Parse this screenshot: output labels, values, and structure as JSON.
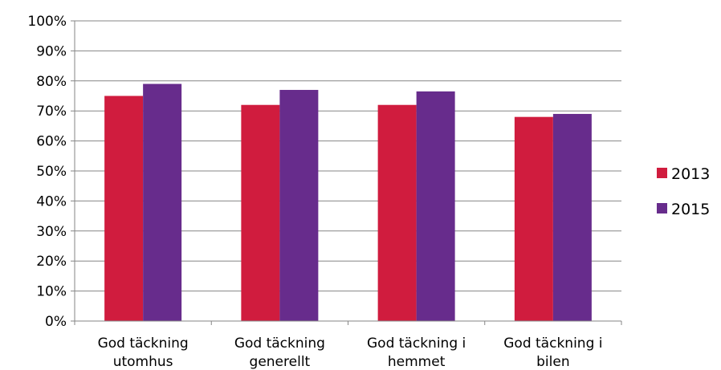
{
  "chart_data": {
    "type": "bar",
    "categories": [
      [
        "God täckning",
        "utomhus"
      ],
      [
        "God täckning",
        "generellt"
      ],
      [
        "God täckning i",
        "hemmet"
      ],
      [
        "God täckning i",
        "bilen"
      ]
    ],
    "series": [
      {
        "name": "2013",
        "color": "#d01c3e",
        "values": [
          75,
          72,
          72,
          68
        ]
      },
      {
        "name": "2015",
        "color": "#672c8c",
        "values": [
          79,
          77,
          76.5,
          69
        ]
      }
    ],
    "y_ticks": [
      "0%",
      "10%",
      "20%",
      "30%",
      "40%",
      "50%",
      "60%",
      "70%",
      "80%",
      "90%",
      "100%"
    ],
    "ylim": [
      0,
      100
    ],
    "unit": "%",
    "grid": true,
    "legend_position": "right"
  }
}
